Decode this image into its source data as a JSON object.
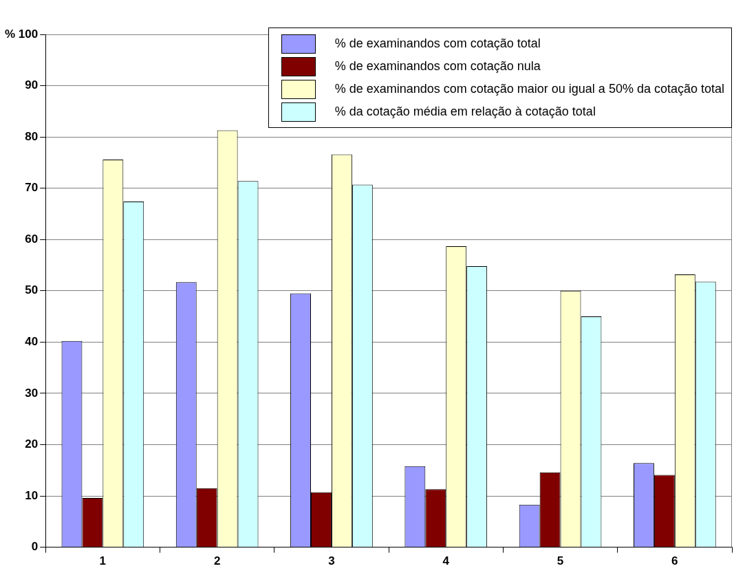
{
  "chart_data": {
    "type": "bar",
    "categories": [
      "1",
      "2",
      "3",
      "4",
      "5",
      "6"
    ],
    "series": [
      {
        "name": "% de examinandos com cotação total",
        "color": "#9999ff",
        "values": [
          40.2,
          51.7,
          49.5,
          15.8,
          8.3,
          16.4
        ]
      },
      {
        "name": "% de examinandos com cotação nula",
        "color": "#800000",
        "values": [
          9.6,
          11.5,
          10.7,
          11.3,
          14.6,
          14.1
        ]
      },
      {
        "name": "% de examinandos com cotação maior ou igual a 50% da cotação total",
        "color": "#ffffcc",
        "values": [
          75.6,
          81.3,
          76.6,
          58.7,
          50.0,
          53.2
        ]
      },
      {
        "name": "% da cotação média em relação à cotação total",
        "color": "#ccffff",
        "values": [
          67.4,
          71.4,
          70.7,
          54.8,
          45.0,
          51.8
        ]
      }
    ],
    "ylim": [
      0,
      100
    ],
    "yticks": [
      0,
      10,
      20,
      30,
      40,
      50,
      60,
      70,
      80,
      90,
      {
        "value": 100,
        "label": "% 100"
      }
    ],
    "grid": "y",
    "legend": "top right"
  }
}
